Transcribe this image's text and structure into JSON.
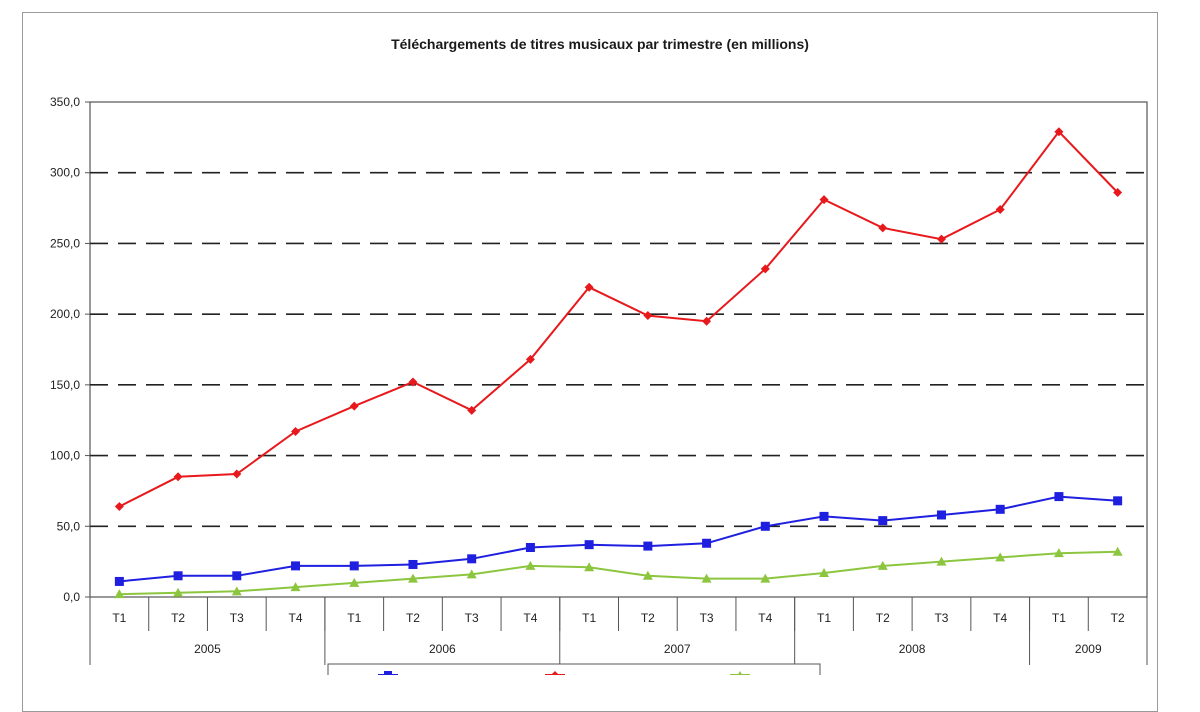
{
  "chart_data": {
    "type": "line",
    "title": "Téléchargements de titres musicaux par trimestre (en millions)",
    "xlabel": "",
    "ylabel": "",
    "ylim": [
      0,
      350
    ],
    "yticks": [
      "0,0",
      "50,0",
      "100,0",
      "150,0",
      "200,0",
      "250,0",
      "300,0",
      "350,0"
    ],
    "grid": true,
    "categories": [
      "T1",
      "T2",
      "T3",
      "T4",
      "T1",
      "T2",
      "T3",
      "T4",
      "T1",
      "T2",
      "T3",
      "T4",
      "T1",
      "T2",
      "T3",
      "T4",
      "T1",
      "T2"
    ],
    "years": [
      {
        "label": "2005",
        "count": 4
      },
      {
        "label": "2006",
        "count": 4
      },
      {
        "label": "2007",
        "count": 4
      },
      {
        "label": "2008",
        "count": 4
      },
      {
        "label": "2009",
        "count": 2
      }
    ],
    "series": [
      {
        "color": "#e8191c",
        "marker": "diamond",
        "values": [
          64,
          85,
          87,
          117,
          135,
          152,
          132,
          168,
          219,
          199,
          195,
          232,
          281,
          261,
          253,
          274,
          329,
          286
        ]
      },
      {
        "color": "#1f1fe0",
        "marker": "square",
        "values": [
          11,
          15,
          15,
          22,
          22,
          23,
          27,
          35,
          37,
          36,
          38,
          50,
          57,
          54,
          58,
          62,
          71,
          68
        ]
      },
      {
        "color": "#8cc63f",
        "marker": "triangle",
        "values": [
          2,
          3,
          4,
          7,
          10,
          13,
          16,
          22,
          21,
          15,
          13,
          13,
          17,
          22,
          25,
          28,
          31,
          32
        ]
      }
    ],
    "legend_position": "bottom"
  }
}
